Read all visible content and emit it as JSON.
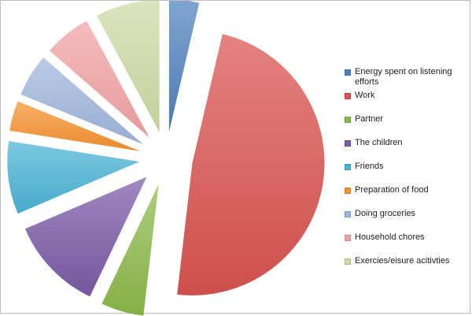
{
  "chart_data": {
    "type": "pie",
    "exploded": true,
    "title": "",
    "categories": [
      "Energy spent on listening efforts",
      "Work",
      "Partner",
      "The children",
      "Friends",
      "Preparation of food",
      "Doing groceries",
      "Household chores",
      "Exercies/eisure acitivties"
    ],
    "values": [
      3.5,
      46,
      5,
      11,
      8.5,
      3.5,
      5,
      5.5,
      7.5
    ],
    "colors": [
      "#4f81bd",
      "#d9534f",
      "#8cb94a",
      "#7b5aa6",
      "#4bb3d6",
      "#f5922f",
      "#9fb6dc",
      "#f1a3a3",
      "#cddba4"
    ],
    "legend_position": "right"
  }
}
